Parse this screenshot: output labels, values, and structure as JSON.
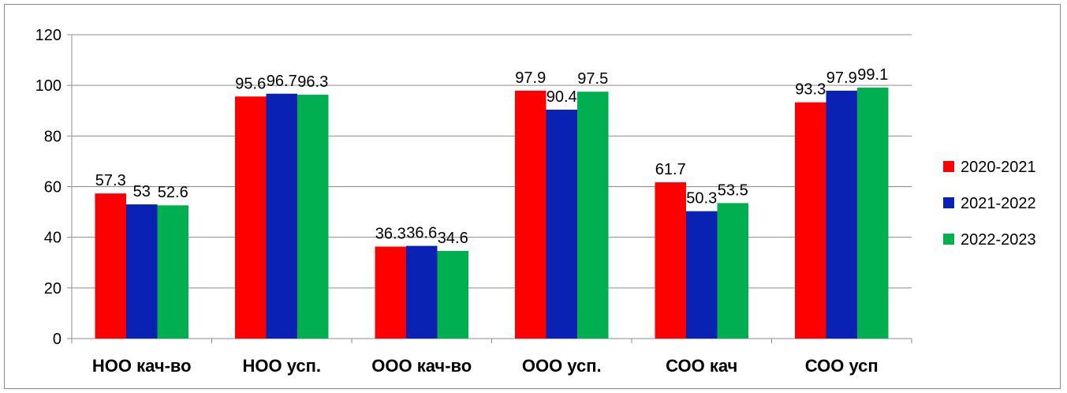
{
  "chart_data": {
    "type": "bar",
    "title": "",
    "xlabel": "",
    "ylabel": "",
    "ylim": [
      0,
      120
    ],
    "yticks": [
      0,
      20,
      40,
      60,
      80,
      100,
      120
    ],
    "ytick_labels": [
      "0",
      "20",
      "40",
      "60",
      "80",
      "100",
      "120"
    ],
    "grid": true,
    "legend_position": "right",
    "categories": [
      "НОО кач-во",
      "НОО усп.",
      "ООО кач-во",
      "ООО усп.",
      "СОО кач",
      "СОО усп"
    ],
    "series": [
      {
        "name": "2020-2021",
        "color": "#ff0000",
        "values": [
          57.3,
          95.6,
          36.3,
          97.9,
          61.7,
          93.3
        ],
        "labels": [
          "57.3",
          "95.6",
          "36.3",
          "97.9",
          "61.7",
          "93.3"
        ]
      },
      {
        "name": "2021-2022",
        "color": "#0a22b4",
        "values": [
          53,
          96.7,
          36.6,
          90.4,
          50.3,
          97.9
        ],
        "labels": [
          "53",
          "96.7",
          "36.6",
          "90.4",
          "50.3",
          "97.9"
        ]
      },
      {
        "name": "2022-2023",
        "color": "#00b050",
        "values": [
          52.6,
          96.3,
          34.6,
          97.5,
          53.5,
          99.1
        ],
        "labels": [
          "52.6",
          "96.3",
          "34.6",
          "97.5",
          "53.5",
          "99.1"
        ]
      }
    ]
  }
}
